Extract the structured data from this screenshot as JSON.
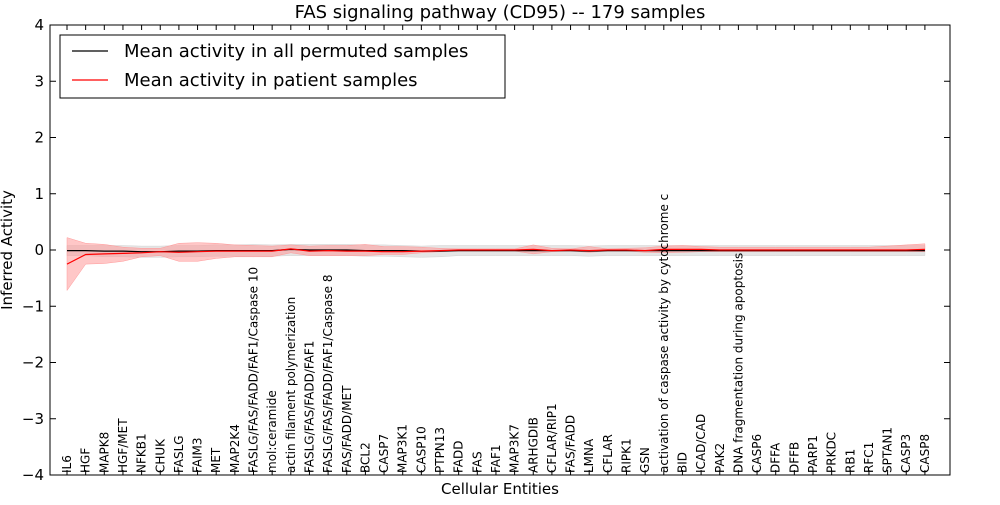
{
  "chart_data": {
    "type": "line",
    "title": "FAS signaling pathway (CD95) -- 179 samples",
    "xlabel": "Cellular Entities",
    "ylabel": "Inferred Activity",
    "ylim": [
      -4,
      4
    ],
    "yticks": [
      -4,
      -3,
      -2,
      -1,
      0,
      1,
      2,
      3,
      4
    ],
    "ytick_labels": [
      "−4",
      "−3",
      "−2",
      "−1",
      "0",
      "1",
      "2",
      "3",
      "4"
    ],
    "grid": false,
    "legend_position": "top-left",
    "categories": [
      "IL6",
      "HGF",
      "MAPK8",
      "HGF/MET",
      "NFKB1",
      "CHUK",
      "FASLG",
      "FAIM3",
      "MET",
      "MAP2K4",
      "FASLG/FAS/FADD/FAF1/Caspase 10",
      "mol:ceramide",
      "actin filament polymerization",
      "FASLG/FAS/FADD/FAF1",
      "FASLG/FAS/FADD/FAF1/Caspase 8",
      "FAS/FADD/MET",
      "BCL2",
      "CASP7",
      "MAP3K1",
      "CASP10",
      "PTPN13",
      "FADD",
      "FAS",
      "FAF1",
      "MAP3K7",
      "ARHGDIB",
      "CFLAR/RIP1",
      "FAS/FADD",
      "LMNA",
      "CFLAR",
      "RIPK1",
      "GSN",
      "activation of caspase activity by cytochrome c",
      "BID",
      "ICAD/CAD",
      "PAK2",
      "DNA fragmentation during apoptosis",
      "CASP6",
      "DFFA",
      "DFFB",
      "PARP1",
      "PRKDC",
      "RB1",
      "RFC1",
      "SPTAN1",
      "CASP3",
      "CASP8"
    ],
    "series": [
      {
        "name": "Mean activity in all permuted samples",
        "color": "#000000",
        "values": [
          -0.01,
          -0.01,
          -0.02,
          -0.02,
          -0.03,
          -0.03,
          -0.02,
          -0.02,
          -0.01,
          -0.01,
          -0.01,
          -0.01,
          0.01,
          0.0,
          0.0,
          0.0,
          -0.01,
          -0.01,
          -0.01,
          -0.02,
          -0.02,
          -0.01,
          -0.01,
          -0.01,
          -0.01,
          -0.01,
          -0.01,
          -0.01,
          -0.02,
          -0.01,
          -0.01,
          -0.01,
          -0.01,
          -0.01,
          -0.01,
          -0.01,
          -0.01,
          -0.01,
          -0.01,
          -0.01,
          -0.01,
          -0.01,
          -0.01,
          -0.01,
          -0.01,
          -0.01,
          -0.01
        ],
        "band_color": "#d3d3d3",
        "lower": [
          -0.1,
          -0.1,
          -0.12,
          -0.12,
          -0.13,
          -0.13,
          -0.12,
          -0.12,
          -0.11,
          -0.11,
          -0.12,
          -0.11,
          -0.1,
          -0.1,
          -0.1,
          -0.1,
          -0.11,
          -0.11,
          -0.12,
          -0.13,
          -0.12,
          -0.1,
          -0.1,
          -0.1,
          -0.1,
          -0.1,
          -0.1,
          -0.1,
          -0.11,
          -0.1,
          -0.1,
          -0.1,
          -0.1,
          -0.1,
          -0.1,
          -0.1,
          -0.1,
          -0.1,
          -0.1,
          -0.1,
          -0.1,
          -0.1,
          -0.1,
          -0.1,
          -0.1,
          -0.1,
          -0.1
        ],
        "upper": [
          0.08,
          0.08,
          0.08,
          0.08,
          0.07,
          0.07,
          0.08,
          0.08,
          0.09,
          0.09,
          0.1,
          0.09,
          0.1,
          0.1,
          0.1,
          0.1,
          0.09,
          0.09,
          0.08,
          0.07,
          0.08,
          0.08,
          0.08,
          0.08,
          0.08,
          0.08,
          0.08,
          0.08,
          0.07,
          0.08,
          0.08,
          0.08,
          0.08,
          0.08,
          0.08,
          0.08,
          0.08,
          0.08,
          0.08,
          0.08,
          0.08,
          0.08,
          0.08,
          0.08,
          0.08,
          0.08,
          0.08
        ]
      },
      {
        "name": "Mean activity in patient samples",
        "color": "#ff0000",
        "values": [
          -0.25,
          -0.08,
          -0.07,
          -0.06,
          -0.05,
          -0.03,
          -0.04,
          -0.03,
          -0.02,
          -0.02,
          -0.02,
          -0.02,
          0.02,
          -0.02,
          -0.01,
          -0.02,
          -0.02,
          -0.03,
          -0.03,
          -0.02,
          -0.01,
          0.0,
          0.0,
          0.0,
          0.0,
          0.01,
          -0.01,
          0.0,
          -0.01,
          0.0,
          0.0,
          -0.01,
          0.01,
          0.01,
          0.01,
          0.0,
          0.0,
          0.0,
          0.0,
          0.0,
          0.0,
          0.0,
          0.0,
          0.0,
          0.0,
          0.0,
          0.01
        ],
        "band_color": "#ff9999",
        "lower": [
          -0.72,
          -0.25,
          -0.24,
          -0.2,
          -0.12,
          -0.1,
          -0.2,
          -0.2,
          -0.15,
          -0.12,
          -0.12,
          -0.12,
          -0.05,
          -0.1,
          -0.1,
          -0.1,
          -0.1,
          -0.08,
          -0.08,
          -0.05,
          -0.03,
          -0.02,
          -0.02,
          -0.02,
          -0.02,
          -0.07,
          -0.03,
          -0.02,
          -0.04,
          -0.02,
          -0.02,
          -0.04,
          -0.05,
          -0.04,
          -0.03,
          -0.03,
          -0.03,
          -0.03,
          -0.03,
          -0.03,
          -0.03,
          -0.03,
          -0.03,
          -0.03,
          -0.03,
          -0.03,
          -0.03
        ],
        "upper": [
          0.22,
          0.12,
          0.1,
          0.05,
          0.03,
          0.03,
          0.12,
          0.13,
          0.12,
          0.09,
          0.08,
          0.07,
          0.09,
          0.07,
          0.08,
          0.08,
          0.1,
          0.06,
          0.06,
          0.05,
          0.03,
          0.02,
          0.02,
          0.02,
          0.02,
          0.09,
          0.03,
          0.02,
          0.06,
          0.02,
          0.03,
          0.04,
          0.07,
          0.08,
          0.06,
          0.05,
          0.05,
          0.05,
          0.05,
          0.05,
          0.05,
          0.05,
          0.05,
          0.05,
          0.07,
          0.09,
          0.11
        ]
      }
    ]
  }
}
